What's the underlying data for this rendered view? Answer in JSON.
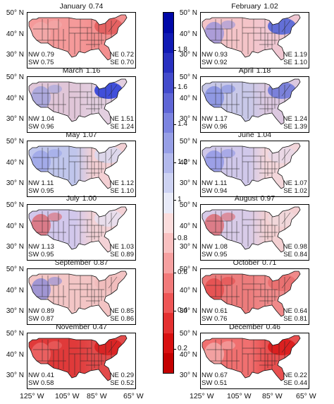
{
  "panels": [
    {
      "month": "January",
      "value": "0.74",
      "nw": "NW 0.79",
      "sw": "SW 0.75",
      "ne": "NE 0.72",
      "se": "SE 0.70",
      "west": "#f59a9a",
      "east": "#f39090",
      "ne_c": "#e25a5a",
      "w_accent": "#f2b2b2"
    },
    {
      "month": "February",
      "value": "1.02",
      "nw": "NW 0.93",
      "sw": "SW 0.92",
      "ne": "NE 1.19",
      "se": "SE 1.10",
      "west": "#f4c4c8",
      "east": "#f0c7d2",
      "ne_c": "#4a5fd8",
      "w_accent": "#7b84e2"
    },
    {
      "month": "March",
      "value": "1.16",
      "nw": "NW 1.04",
      "sw": "SW 0.96",
      "ne": "NE 1.51",
      "se": "SE 1.24",
      "west": "#e0c6d8",
      "east": "#e3cfe0",
      "ne_c": "#2538d8",
      "w_accent": "#8a96e0"
    },
    {
      "month": "April",
      "value": "1.18",
      "nw": "NW 1.17",
      "sw": "SW 0.96",
      "ne": "NE 1.24",
      "se": "SE 1.39",
      "west": "#c8c8e8",
      "east": "#dcc8e0",
      "ne_c": "#6a74d8",
      "w_accent": "#6a7ae0"
    },
    {
      "month": "May",
      "value": "1.07",
      "nw": "NW 1.11",
      "sw": "SW 0.95",
      "ne": "NE 1.12",
      "se": "SE 1.10",
      "west": "#c0c6ec",
      "east": "#f3d0d4",
      "ne_c": "#d8d8ee",
      "w_accent": "#8f9ae8"
    },
    {
      "month": "June",
      "value": "1.04",
      "nw": "NW 1.11",
      "sw": "SW 0.94",
      "ne": "NE 1.07",
      "se": "SE 1.02",
      "west": "#d0c8ea",
      "east": "#f3d6da",
      "ne_c": "#e8d8e6",
      "w_accent": "#7a86e4"
    },
    {
      "month": "July",
      "value": "1.00",
      "nw": "NW 1.13",
      "sw": "SW 0.95",
      "ne": "NE 1.03",
      "se": "SE 0.89",
      "west": "#d2c8ec",
      "east": "#f3d2d6",
      "ne_c": "#e6e0f0",
      "w_accent": "#e04848"
    },
    {
      "month": "August",
      "value": "0.97",
      "nw": "NW 1.08",
      "sw": "SW 0.95",
      "ne": "NE 0.98",
      "se": "SE 0.84",
      "west": "#d8cbe8",
      "east": "#f3d0d2",
      "ne_c": "#f0d8dc",
      "w_accent": "#e04848"
    },
    {
      "month": "September",
      "value": "0.87",
      "nw": "NW 0.89",
      "sw": "SW 0.87",
      "ne": "NE 0.85",
      "se": "SE 0.86",
      "west": "#f3c6c6",
      "east": "#f3c4c4",
      "ne_c": "#f0bcbc",
      "w_accent": "#6a76dc"
    },
    {
      "month": "October",
      "value": "0.71",
      "nw": "NW 0.61",
      "sw": "SW 0.76",
      "ne": "NE 0.64",
      "se": "SE 0.81",
      "west": "#ec7c7c",
      "east": "#f08a8a",
      "ne_c": "#e86c6c",
      "w_accent": "#e23a3a"
    },
    {
      "month": "November",
      "value": "0.47",
      "nw": "NW 0.41",
      "sw": "SW 0.58",
      "ne": "NE 0.29",
      "se": "SE 0.52",
      "west": "#e03a3a",
      "east": "#e24a4a",
      "ne_c": "#d81e1e",
      "w_accent": "#f07a7a"
    },
    {
      "month": "December",
      "value": "0.46",
      "nw": "NW 0.67",
      "sw": "SW 0.51",
      "ne": "NE 0.22",
      "se": "SE 0.44",
      "west": "#f07070",
      "east": "#e85050",
      "ne_c": "#d81818",
      "w_accent": "#f4c2c2"
    }
  ],
  "lat_labels": [
    "50° N",
    "40° N",
    "30° N"
  ],
  "lon_labels": [
    "125° W",
    "105° W",
    "85° W",
    "65° W"
  ],
  "colorbar": {
    "ticks": [
      "1.8",
      "1.6",
      "1.4",
      "1.2",
      "1",
      "0.8",
      "0.6",
      "0.4",
      "0.2"
    ],
    "colors": [
      "#c40000",
      "#d81010",
      "#e43030",
      "#ee5656",
      "#f27a7a",
      "#f6a0a0",
      "#f9c0c0",
      "#fbdcdc",
      "#e8eaf8",
      "#cdd2f2",
      "#b3b9ec",
      "#979fe6",
      "#7c84e0",
      "#5f66d6",
      "#434bcc",
      "#2830c0",
      "#101ab4",
      "#0008a8"
    ]
  }
}
